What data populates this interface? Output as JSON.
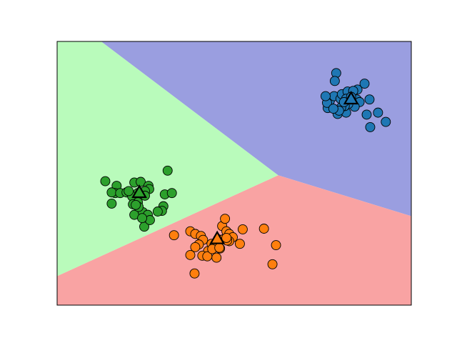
{
  "chart_data": {
    "type": "scatter",
    "title": "",
    "xlabel": "",
    "ylabel": "",
    "grid": false,
    "legend": "none",
    "xlim": [
      -2.5,
      2.5
    ],
    "ylim": [
      -2.0,
      2.0
    ],
    "ticks": false,
    "regions": [
      {
        "cluster": 0,
        "color": "#9a9ee0",
        "polygon": [
          [
            -1.88,
            2.0
          ],
          [
            2.5,
            2.0
          ],
          [
            2.5,
            -0.65
          ],
          [
            0.62,
            -0.03
          ]
        ]
      },
      {
        "cluster": 1,
        "color": "#f9a3a3",
        "polygon": [
          [
            0.62,
            -0.03
          ],
          [
            2.5,
            -0.65
          ],
          [
            2.5,
            -2.0
          ],
          [
            -2.5,
            -2.0
          ],
          [
            -2.5,
            -1.56
          ]
        ]
      },
      {
        "cluster": 2,
        "color": "#b9fbbb",
        "polygon": [
          [
            -2.5,
            2.0
          ],
          [
            -1.88,
            2.0
          ],
          [
            0.62,
            -0.03
          ],
          [
            -2.5,
            -1.56
          ]
        ]
      }
    ],
    "series": [
      {
        "color": "#1f77b4",
        "points": [
          [
            1.44,
            1.52
          ],
          [
            1.84,
            1.36
          ],
          [
            1.74,
            1.27
          ],
          [
            1.91,
            1.12
          ],
          [
            1.69,
            1.06
          ],
          [
            1.46,
            0.9
          ],
          [
            1.92,
            0.7
          ],
          [
            2.03,
            0.92
          ],
          [
            2.14,
            0.78
          ],
          [
            1.87,
            0.89
          ],
          [
            1.58,
            0.92
          ],
          [
            1.35,
            1.1
          ],
          [
            1.32,
            0.99
          ],
          [
            1.31,
            1.07
          ],
          [
            1.41,
            1.17
          ],
          [
            1.5,
            1.13
          ],
          [
            1.52,
            1.2
          ],
          [
            1.6,
            1.24
          ],
          [
            1.68,
            1.25
          ],
          [
            1.73,
            1.12
          ],
          [
            1.77,
            1.08
          ],
          [
            1.7,
            1.01
          ],
          [
            1.61,
            1.05
          ],
          [
            1.56,
            1.02
          ],
          [
            1.51,
            1.0
          ],
          [
            1.48,
            0.95
          ],
          [
            1.4,
            0.98
          ],
          [
            1.29,
            1.17
          ],
          [
            1.42,
            1.4
          ],
          [
            1.58,
            1.13
          ],
          [
            1.65,
            1.16
          ],
          [
            1.55,
            1.08
          ]
        ]
      },
      {
        "color": "#ff7f0e",
        "points": [
          [
            -0.85,
            -0.94
          ],
          [
            -0.62,
            -0.88
          ],
          [
            -0.55,
            -0.92
          ],
          [
            -0.47,
            -0.95
          ],
          [
            -0.44,
            -1.01
          ],
          [
            -0.32,
            -1.07
          ],
          [
            -0.23,
            -1.0
          ],
          [
            -0.17,
            -0.8
          ],
          [
            -0.11,
            -0.88
          ],
          [
            -0.07,
            -0.92
          ],
          [
            -0.02,
            -0.97
          ],
          [
            -0.07,
            -1.03
          ],
          [
            -0.15,
            -1.0
          ],
          [
            -0.28,
            -1.1
          ],
          [
            -0.37,
            -1.18
          ],
          [
            -0.5,
            -1.08
          ],
          [
            -0.55,
            -1.12
          ],
          [
            -0.62,
            -1.24
          ],
          [
            -0.45,
            -1.25
          ],
          [
            -0.25,
            -1.28
          ],
          [
            -0.2,
            -1.14
          ],
          [
            -0.1,
            -1.02
          ],
          [
            0.08,
            -1.07
          ],
          [
            0.12,
            -0.85
          ],
          [
            0.42,
            -0.84
          ],
          [
            0.59,
            -1.09
          ],
          [
            0.54,
            -1.38
          ],
          [
            -0.56,
            -1.52
          ],
          [
            -0.38,
            -1.26
          ],
          [
            -0.31,
            -1.15
          ],
          [
            -0.21,
            -1.13
          ],
          [
            -0.11,
            -0.98
          ],
          [
            -0.13,
            -0.69
          ]
        ]
      },
      {
        "color": "#2ca02c",
        "points": [
          [
            -1.82,
            -0.12
          ],
          [
            -1.66,
            -0.19
          ],
          [
            -1.68,
            -0.3
          ],
          [
            -1.73,
            -0.29
          ],
          [
            -1.61,
            -0.3
          ],
          [
            -1.52,
            -0.29
          ],
          [
            -1.41,
            -0.14
          ],
          [
            -1.32,
            -0.13
          ],
          [
            -1.21,
            -0.19
          ],
          [
            -1.2,
            -0.24
          ],
          [
            -1.26,
            -0.27
          ],
          [
            -1.36,
            -0.3
          ],
          [
            -1.44,
            -0.35
          ],
          [
            -1.49,
            -0.27
          ],
          [
            -1.36,
            -0.44
          ],
          [
            -1.43,
            -0.47
          ],
          [
            -1.41,
            -0.63
          ],
          [
            -1.29,
            -0.59
          ],
          [
            -1.22,
            -0.63
          ],
          [
            -1.0,
            -0.5
          ],
          [
            -1.02,
            -0.57
          ],
          [
            -1.35,
            -0.51
          ],
          [
            -1.27,
            -0.81
          ],
          [
            -1.08,
            -0.58
          ],
          [
            -1.19,
            -0.71
          ],
          [
            -1.3,
            -0.68
          ],
          [
            -0.98,
            -0.32
          ],
          [
            -0.88,
            -0.3
          ],
          [
            -0.94,
            0.04
          ],
          [
            -1.26,
            -0.34
          ],
          [
            -1.39,
            -0.48
          ],
          [
            -1.73,
            -0.46
          ]
        ]
      }
    ],
    "centers": [
      {
        "color": "#1f77b4",
        "x": 1.65,
        "y": 1.13
      },
      {
        "color": "#ff7f0e",
        "x": -0.24,
        "y": -0.99
      },
      {
        "color": "#2ca02c",
        "x": -1.34,
        "y": -0.29
      }
    ]
  }
}
